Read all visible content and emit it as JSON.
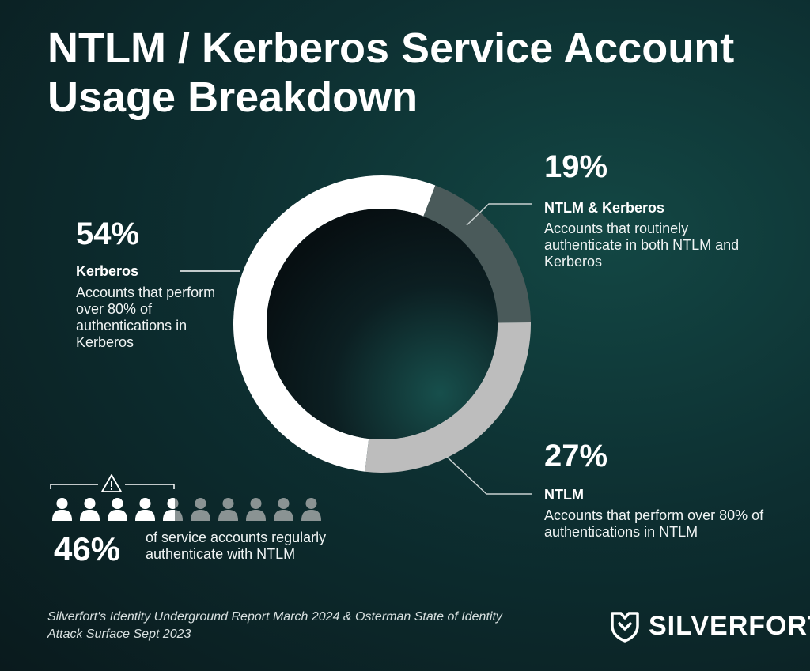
{
  "title": "NTLM / Kerberos Service Account Usage Breakdown",
  "chart_data": {
    "type": "pie",
    "variant": "donut",
    "series": [
      {
        "name": "Kerberos",
        "value": 54,
        "label": "54%",
        "description": "Accounts that perform over 80% of authentications in Kerberos",
        "color": "#ffffff"
      },
      {
        "name": "NTLM & Kerberos",
        "value": 19,
        "label": "19%",
        "description": "Accounts that routinely authenticate in both NTLM and Kerberos",
        "color": "#4a5a5a"
      },
      {
        "name": "NTLM",
        "value": 27,
        "label": "27%",
        "description": "Accounts that perform over 80% of authentications in NTLM",
        "color": "#bdbdbd"
      }
    ]
  },
  "callout": {
    "value": 46,
    "pct_label": "46%",
    "text": "of service accounts regularly authenticate with NTLM",
    "icons_total": 10,
    "icon": "person-icon",
    "warning_icon": "warning-icon",
    "colors": {
      "active": "#ffffff",
      "inactive": "#8a9393"
    }
  },
  "source": "Silverfort's Identity Underground Report March 2024 & Osterman State of Identity Attack Surface Sept 2023",
  "brand": {
    "name": "SILVERFORT",
    "icon": "silverfort-shield-icon"
  }
}
